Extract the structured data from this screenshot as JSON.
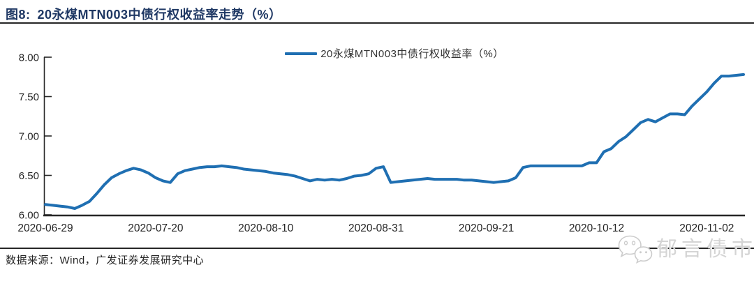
{
  "header": {
    "figure_label": "图8:",
    "title": "20永煤MTN003中债行权收益率走势（%）"
  },
  "legend": {
    "label": "20永煤MTN003中债行权收益率（%）"
  },
  "chart_data": {
    "type": "line",
    "title": "20永煤MTN003中债行权收益率走势（%）",
    "legend_entries": [
      "20永煤MTN003中债行权收益率（%）"
    ],
    "legend_position": "top-center",
    "grid": false,
    "xlabel": "",
    "ylabel": "",
    "ylim": [
      6.0,
      8.0
    ],
    "ytick_labels": [
      "6.00",
      "6.50",
      "7.00",
      "7.50",
      "8.00"
    ],
    "yticks": [
      6.0,
      6.5,
      7.0,
      7.5,
      8.0
    ],
    "xtick_labels": [
      "2020-06-29",
      "2020-07-20",
      "2020-08-10",
      "2020-08-31",
      "2020-09-21",
      "2020-10-12",
      "2020-11-02"
    ],
    "xtick_positions": [
      0,
      15,
      30,
      45,
      60,
      75,
      90
    ],
    "series": [
      {
        "name": "20永煤MTN003中债行权收益率（%）",
        "values": [
          6.13,
          6.12,
          6.11,
          6.1,
          6.08,
          6.12,
          6.17,
          6.27,
          6.38,
          6.47,
          6.52,
          6.56,
          6.59,
          6.57,
          6.53,
          6.47,
          6.43,
          6.41,
          6.52,
          6.56,
          6.58,
          6.6,
          6.61,
          6.61,
          6.62,
          6.61,
          6.6,
          6.58,
          6.57,
          6.56,
          6.55,
          6.53,
          6.52,
          6.51,
          6.49,
          6.46,
          6.43,
          6.45,
          6.44,
          6.45,
          6.44,
          6.46,
          6.49,
          6.5,
          6.52,
          6.59,
          6.61,
          6.41,
          6.42,
          6.43,
          6.44,
          6.45,
          6.46,
          6.45,
          6.45,
          6.45,
          6.45,
          6.44,
          6.44,
          6.43,
          6.42,
          6.41,
          6.42,
          6.43,
          6.47,
          6.6,
          6.62,
          6.62,
          6.62,
          6.62,
          6.62,
          6.62,
          6.62,
          6.62,
          6.66,
          6.66,
          6.8,
          6.84,
          6.93,
          6.99,
          7.08,
          7.17,
          7.21,
          7.18,
          7.23,
          7.28,
          7.28,
          7.27,
          7.38,
          7.47,
          7.56,
          7.67,
          7.76,
          7.76,
          7.77,
          7.78
        ]
      }
    ]
  },
  "footer": {
    "source": "数据来源：Wind，广发证券发展研究中心"
  },
  "watermark": {
    "icon": "wechat-icon",
    "label": "郁言债市"
  },
  "colors": {
    "line": "#1F6FB2",
    "title": "#1F3864",
    "rule": "#262626",
    "axis": "#262626",
    "tick_text": "#262626",
    "watermark_text": "#d4d4d4",
    "watermark_stroke": "#cccccc"
  }
}
